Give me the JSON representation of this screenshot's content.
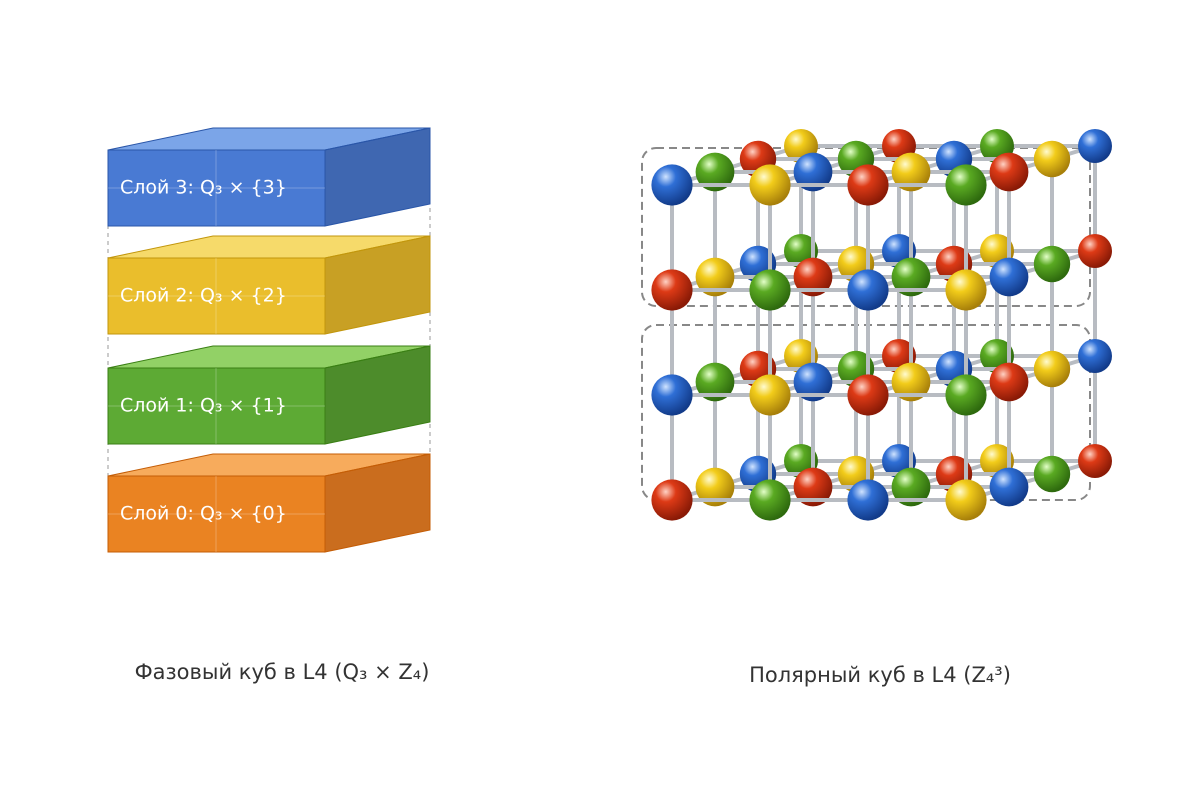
{
  "phase_cube": {
    "layers": [
      "Слой 3: Q₃ × {3}",
      "Слой 2: Q₃ × {2}",
      "Слой 1: Q₃ × {1}",
      "Слой 0: Q₃ × {0}"
    ],
    "caption": "Фазовый куб в L4 (Q₃ × Z₄)"
  },
  "polar_cube": {
    "caption": "Полярный куб в L4 (Z₄³)"
  }
}
